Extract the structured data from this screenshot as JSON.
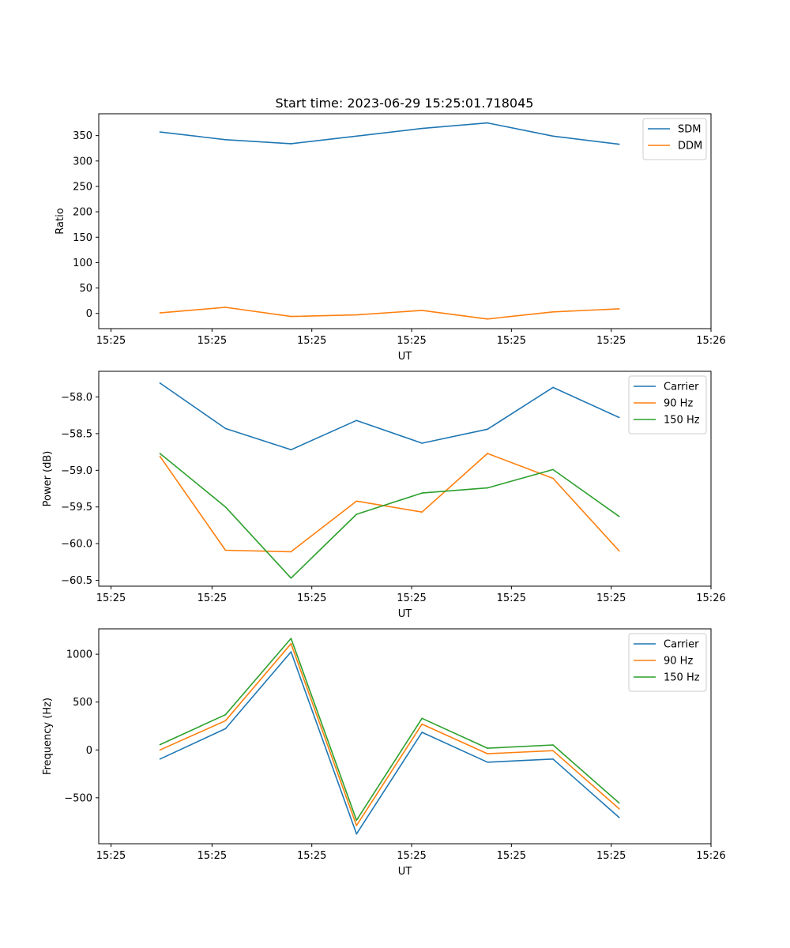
{
  "figure": {
    "title": "Start time: 2023-06-29 15:25:01.718045"
  },
  "chart_data": [
    {
      "type": "line",
      "title": "Start time: 2023-06-29 15:25:01.718045",
      "xlabel": "UT",
      "ylabel": "Ratio",
      "x_tick_labels": [
        "15:25",
        "15:25",
        "15:25",
        "15:25",
        "15:25",
        "15:25",
        "15:26"
      ],
      "y_ticks": [
        0,
        50,
        100,
        150,
        200,
        250,
        300,
        350
      ],
      "ylim": [
        -30,
        393
      ],
      "legend_position": "top-right",
      "grid": false,
      "series": [
        {
          "name": "SDM",
          "color": "#1f77b4",
          "values": [
            357,
            342,
            334,
            349,
            364,
            375,
            349,
            333
          ]
        },
        {
          "name": "DDM",
          "color": "#ff7f0e",
          "values": [
            1,
            12,
            -6,
            -3,
            6,
            -11,
            3,
            9
          ]
        }
      ]
    },
    {
      "type": "line",
      "title": "",
      "xlabel": "UT",
      "ylabel": "Power (dB)",
      "x_tick_labels": [
        "15:25",
        "15:25",
        "15:25",
        "15:25",
        "15:25",
        "15:25",
        "15:26"
      ],
      "y_ticks": [
        -60.5,
        -60.0,
        -59.5,
        -59.0,
        -58.5,
        -58.0
      ],
      "y_tick_labels": [
        "−60.5",
        "−60.0",
        "−59.5",
        "−59.0",
        "−58.5",
        "−58.0"
      ],
      "ylim": [
        -60.58,
        -57.65
      ],
      "legend_position": "top-right",
      "grid": false,
      "series": [
        {
          "name": "Carrier",
          "color": "#1f77b4",
          "values": [
            -57.81,
            -58.43,
            -58.72,
            -58.32,
            -58.63,
            -58.44,
            -57.87,
            -58.28
          ]
        },
        {
          "name": "90 Hz",
          "color": "#ff7f0e",
          "values": [
            -58.81,
            -60.09,
            -60.11,
            -59.42,
            -59.57,
            -58.77,
            -59.11,
            -60.1
          ]
        },
        {
          "name": "150 Hz",
          "color": "#2ca02c",
          "values": [
            -58.77,
            -59.5,
            -60.47,
            -59.6,
            -59.31,
            -59.24,
            -58.99,
            -59.63
          ]
        }
      ]
    },
    {
      "type": "line",
      "title": "",
      "xlabel": "UT",
      "ylabel": "Frequency (Hz)",
      "x_tick_labels": [
        "15:25",
        "15:25",
        "15:25",
        "15:25",
        "15:25",
        "15:25",
        "15:26"
      ],
      "y_ticks": [
        -500,
        0,
        500,
        1000
      ],
      "y_tick_labels": [
        "−500",
        "0",
        "500",
        "1000"
      ],
      "ylim": [
        -980,
        1265
      ],
      "legend_position": "top-right",
      "grid": false,
      "series": [
        {
          "name": "Carrier",
          "color": "#1f77b4",
          "values": [
            -95,
            222,
            1025,
            -878,
            184,
            -128,
            -95,
            -707
          ]
        },
        {
          "name": "90 Hz",
          "color": "#ff7f0e",
          "values": [
            0,
            305,
            1110,
            -790,
            270,
            -40,
            -8,
            -615
          ]
        },
        {
          "name": "150 Hz",
          "color": "#2ca02c",
          "values": [
            55,
            368,
            1165,
            -735,
            330,
            18,
            52,
            -555
          ]
        }
      ]
    }
  ]
}
